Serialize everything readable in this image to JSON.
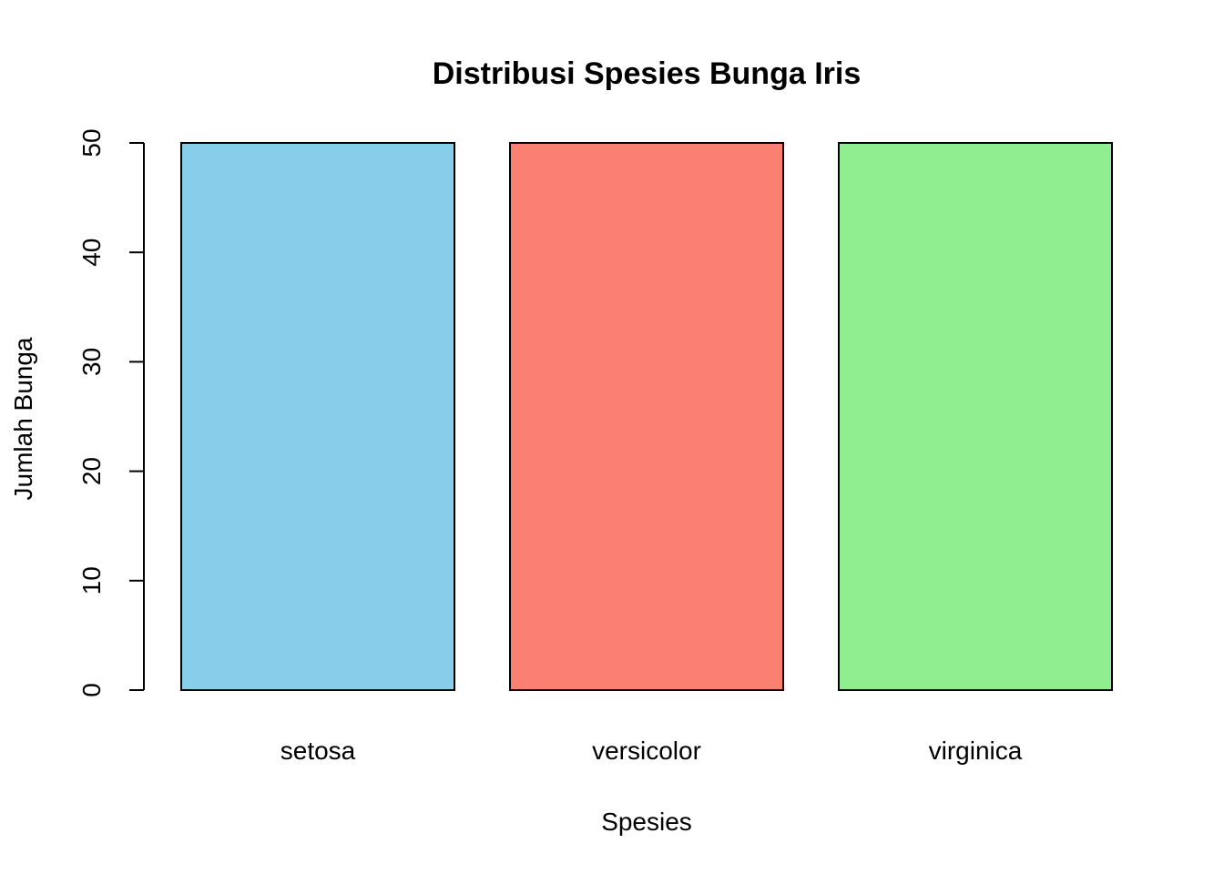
{
  "chart_data": {
    "type": "bar",
    "title": "Distribusi Spesies Bunga Iris",
    "xlabel": "Spesies",
    "ylabel": "Jumlah Bunga",
    "categories": [
      "setosa",
      "versicolor",
      "virginica"
    ],
    "values": [
      50,
      50,
      50
    ],
    "colors": [
      "#87CEEB",
      "#FA8072",
      "#90EE90"
    ],
    "ylim": [
      0,
      50
    ],
    "yticks": [
      0,
      10,
      20,
      30,
      40,
      50
    ],
    "grid": false,
    "legend": "none"
  }
}
